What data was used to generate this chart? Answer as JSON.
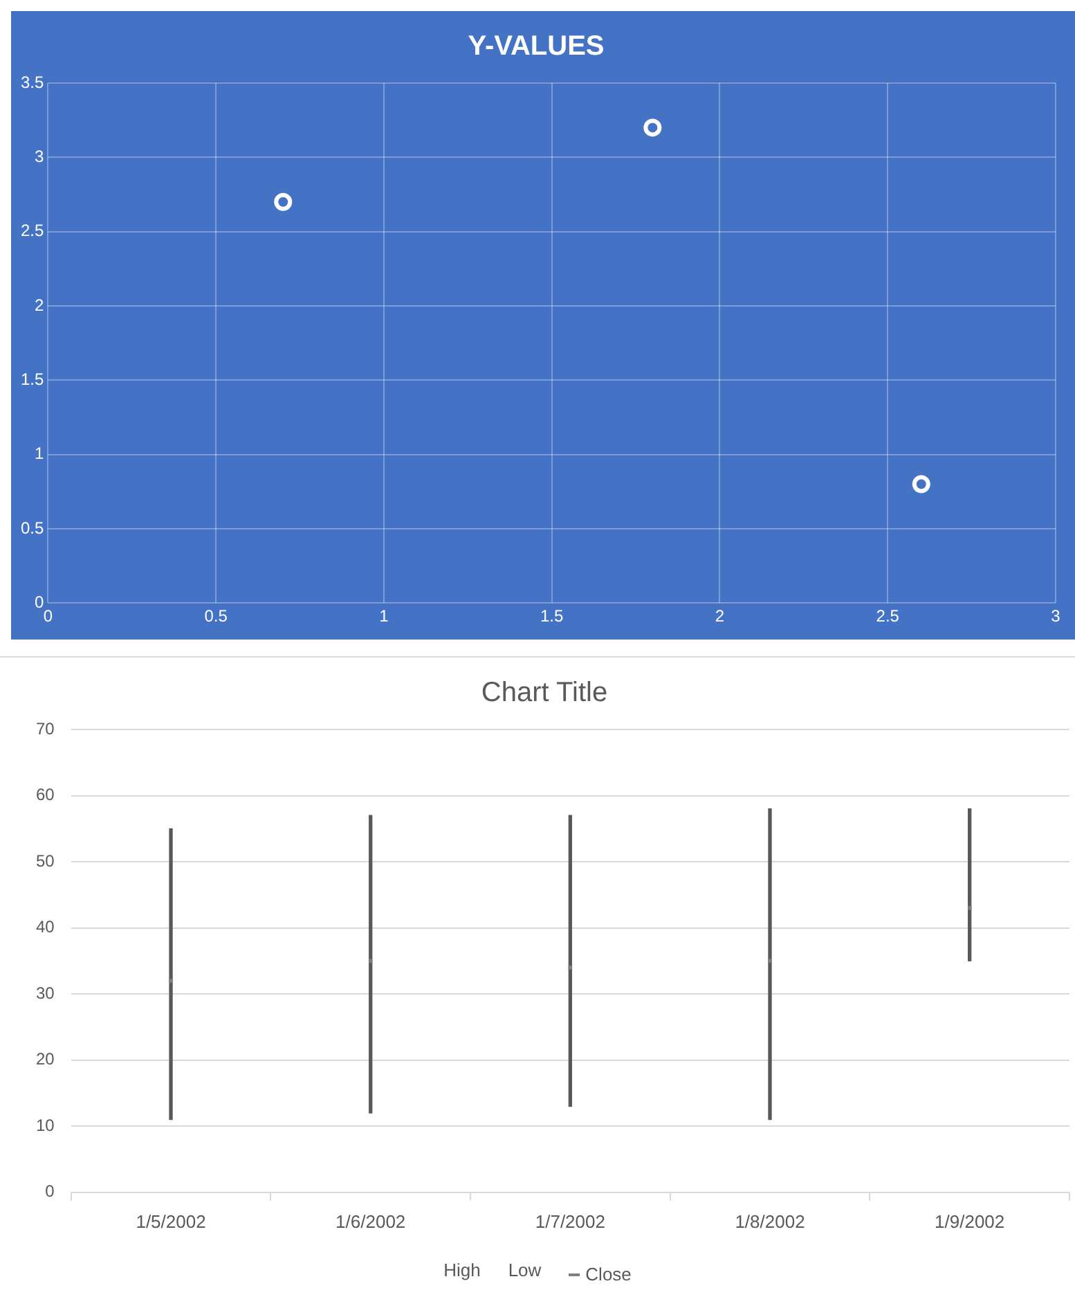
{
  "chart_data": [
    {
      "type": "scatter",
      "title": "Y-VALUES",
      "x": [
        0.7,
        1.8,
        2.6
      ],
      "values": [
        2.7,
        3.2,
        0.8
      ],
      "color": "#ffffff",
      "xlim": [
        0,
        3
      ],
      "xticks": [
        0,
        0.5,
        1,
        1.5,
        2,
        2.5,
        3
      ],
      "ylim": [
        0,
        3.5
      ],
      "yticks": [
        0,
        0.5,
        1,
        1.5,
        2,
        2.5,
        3,
        3.5
      ],
      "grid": true,
      "marker": "circle"
    },
    {
      "type": "bar",
      "title": "Chart Title",
      "categories": [
        "1/5/2002",
        "1/6/2002",
        "1/7/2002",
        "1/8/2002",
        "1/9/2002"
      ],
      "series": [
        {
          "type": "bar",
          "color": "#595959",
          "base": [
            11,
            12,
            13,
            11,
            35
          ],
          "values": [
            44,
            45,
            44,
            47,
            23
          ]
        },
        {
          "type": "scatter",
          "name": "Close",
          "color": "#7f7f7f",
          "marker": "square",
          "values": [
            32,
            35,
            34,
            35,
            43
          ]
        }
      ],
      "annotations": [
        "High",
        "Low"
      ],
      "ylim": [
        0,
        70
      ],
      "yticks": [
        0,
        10,
        20,
        30,
        40,
        50,
        60,
        70
      ],
      "grid": "y",
      "legend": "bottom"
    }
  ]
}
